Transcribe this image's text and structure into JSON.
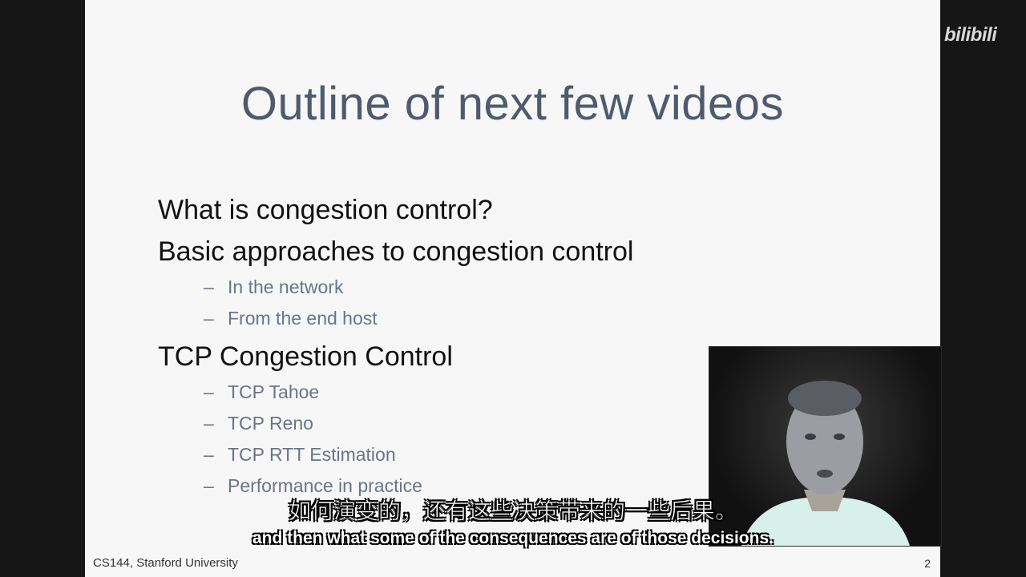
{
  "slide": {
    "title": "Outline of next few videos",
    "bullets": [
      "What is congestion control?",
      "Basic approaches to congestion control",
      "TCP Congestion Control"
    ],
    "subs_basic": [
      "In the network",
      "From the end host"
    ],
    "subs_tcp": [
      "TCP Tahoe",
      "TCP Reno",
      "TCP RTT Estimation",
      "Performance in practice"
    ],
    "dash": "–",
    "footer_left": "CS144, Stanford University",
    "page_number": "2"
  },
  "video": {
    "watermark": "bilibili",
    "subtitle_cn": "如何演变的，还有这些决策带来的一些后果。",
    "subtitle_en": "and then what some of the consequences are of those decisions."
  }
}
